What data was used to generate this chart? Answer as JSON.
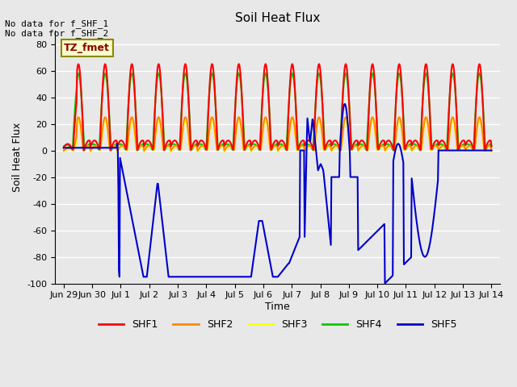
{
  "title": "Soil Heat Flux",
  "ylabel": "Soil Heat Flux",
  "xlabel": "Time",
  "ylim": [
    -100,
    90
  ],
  "background_color": "#e8e8e8",
  "plot_bg_color": "#e8e8e8",
  "grid_color": "white",
  "annotation_text": "No data for f_SHF_1\nNo data for f_SHF_2",
  "legend_label": "TZ_fmet",
  "series_colors": {
    "SHF1": "#ff0000",
    "SHF2": "#ff8800",
    "SHF3": "#ffff00",
    "SHF4": "#00cc00",
    "SHF5": "#0000cc"
  },
  "series_linewidths": {
    "SHF1": 1.5,
    "SHF2": 1.5,
    "SHF3": 1.5,
    "SHF4": 1.5,
    "SHF5": 1.5
  },
  "xtick_labels": [
    "Jun 29",
    "Jun 30",
    "Jul 1",
    "Jul 2",
    "Jul 3",
    "Jul 4",
    "Jul 5",
    "Jul 6",
    "Jul 7",
    "Jul 8",
    "Jul 9",
    "Jul 10",
    "Jul 11",
    "Jul 12",
    "Jul 13",
    "Jul 14"
  ],
  "ytick_values": [
    -100,
    -80,
    -60,
    -40,
    -20,
    0,
    20,
    40,
    60,
    80
  ],
  "legend_items": [
    "SHF1",
    "SHF2",
    "SHF3",
    "SHF4",
    "SHF5"
  ]
}
